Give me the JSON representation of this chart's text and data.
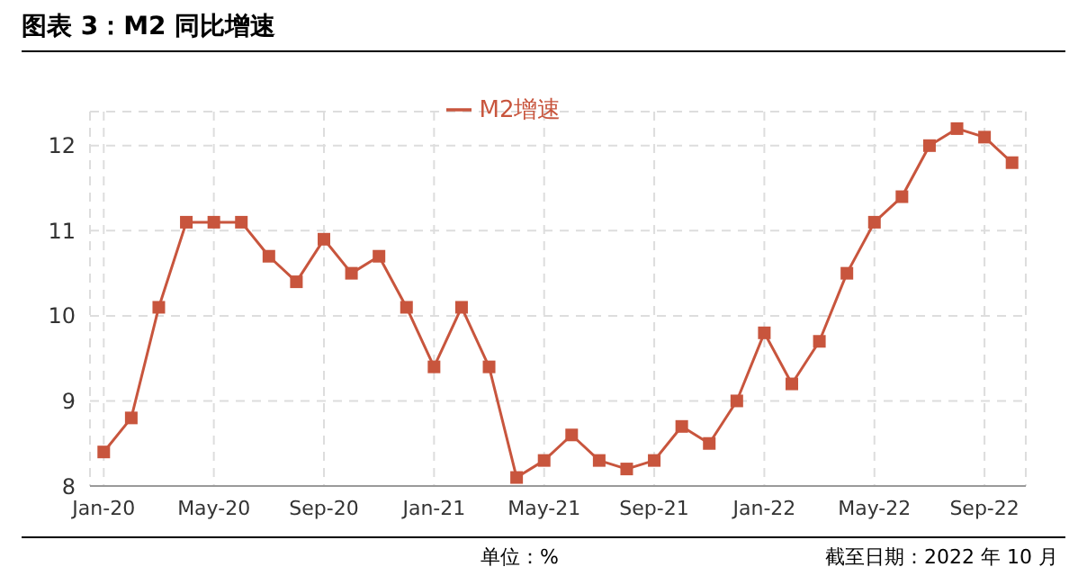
{
  "chart_data": {
    "type": "line",
    "title": "图表 3：M2 同比增速",
    "categories": [
      "Jan-20",
      null,
      null,
      null,
      "May-20",
      null,
      null,
      null,
      "Sep-20",
      null,
      null,
      null,
      "Jan-21",
      null,
      null,
      null,
      "May-21",
      null,
      null,
      null,
      "Sep-21",
      null,
      null,
      null,
      "Jan-22",
      null,
      null,
      null,
      "May-22",
      null,
      null,
      null,
      "Sep-22",
      null
    ],
    "series": [
      {
        "name": "M2增速",
        "color": "#c8553d",
        "values": [
          8.4,
          8.8,
          10.1,
          11.1,
          11.1,
          11.1,
          10.7,
          10.4,
          10.9,
          10.5,
          10.7,
          10.1,
          9.4,
          10.1,
          9.4,
          8.1,
          8.3,
          8.6,
          8.3,
          8.2,
          8.3,
          8.7,
          8.5,
          9.0,
          9.8,
          9.2,
          9.7,
          10.5,
          11.1,
          11.4,
          12.0,
          12.2,
          12.1,
          11.8
        ]
      }
    ],
    "ylim": [
      8,
      12.4
    ],
    "yticks": [
      8,
      9,
      10,
      11,
      12
    ],
    "grid": true,
    "legend": "top",
    "marker": "square",
    "line_style": "solid",
    "annotations": [
      "单位：%",
      "截至日期：2022 年 10 月"
    ]
  }
}
